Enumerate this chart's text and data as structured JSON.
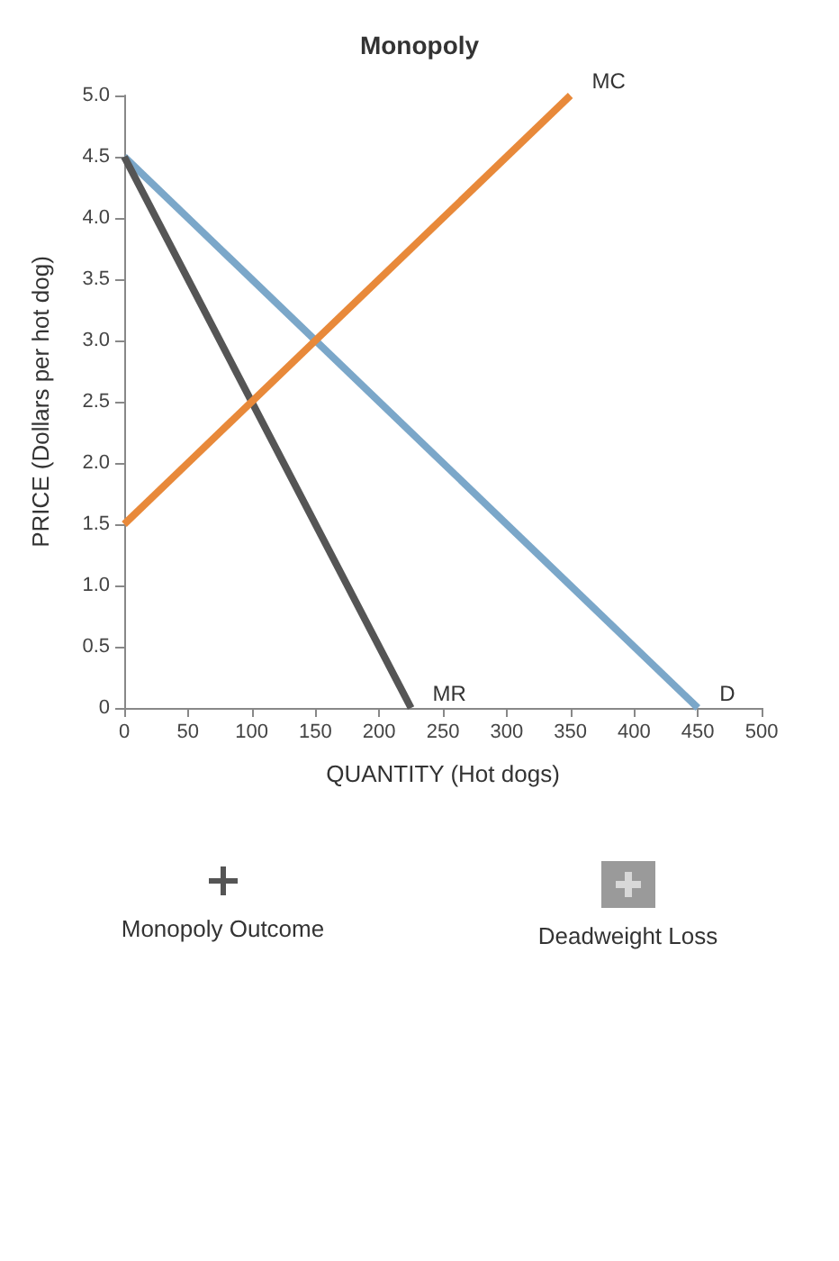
{
  "chart_data": {
    "type": "line",
    "title": "Monopoly",
    "xlabel": "QUANTITY (Hot dogs)",
    "ylabel": "PRICE (Dollars per hot dog)",
    "xlim": [
      0,
      500
    ],
    "xticks": [
      0,
      50,
      100,
      150,
      200,
      250,
      300,
      350,
      400,
      450,
      500
    ],
    "ylim": [
      0,
      5
    ],
    "yticks": [
      0,
      0.5,
      {
        "value": 1,
        "label": "1.0"
      },
      1.5,
      {
        "value": 2,
        "label": "2.0"
      },
      2.5,
      {
        "value": 3,
        "label": "3.0"
      },
      3.5,
      {
        "value": 4,
        "label": "4.0"
      },
      4.5,
      {
        "value": 5,
        "label": "5.0"
      }
    ],
    "grid": false,
    "legend": false,
    "marker": "none",
    "line_style": "solid",
    "series": [
      {
        "name": "D",
        "color": "#7ba7c9",
        "x": [
          0,
          450
        ],
        "values": [
          4.5,
          0
        ]
      },
      {
        "name": "MR",
        "color": "#555555",
        "x": [
          0,
          225
        ],
        "values": [
          4.5,
          0
        ]
      },
      {
        "name": "MC",
        "color": "#e8893a",
        "x": [
          0,
          350
        ],
        "values": [
          1.5,
          5.0
        ]
      }
    ],
    "annotations": [
      "Monopoly Outcome",
      "Deadweight Loss"
    ]
  }
}
